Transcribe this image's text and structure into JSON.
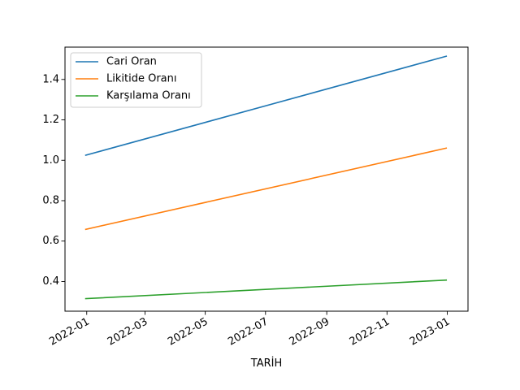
{
  "chart_data": {
    "type": "line",
    "title": "",
    "xlabel": "TARİH",
    "ylabel": "",
    "x_type": "date",
    "x_ticks": [
      "2022-01",
      "2022-03",
      "2022-05",
      "2022-07",
      "2022-09",
      "2022-11",
      "2023-01"
    ],
    "y_ticks": [
      "0.4",
      "0.6",
      "0.8",
      "1.0",
      "1.2",
      "1.4"
    ],
    "xlim": [
      "2021-12-10",
      "2023-01-22"
    ],
    "ylim": [
      0.253,
      1.56
    ],
    "grid": false,
    "legend_position": "upper-left",
    "series": [
      {
        "name": "Cari Oran",
        "color": "#1f77b4",
        "x": [
          "2021-12-31",
          "2022-12-31"
        ],
        "y": [
          1.025,
          1.515
        ]
      },
      {
        "name": "Likitide Oranı",
        "color": "#ff7f0e",
        "x": [
          "2021-12-31",
          "2022-12-31"
        ],
        "y": [
          0.658,
          1.06
        ]
      },
      {
        "name": "Karşılama Oranı",
        "color": "#2ca02c",
        "x": [
          "2021-12-31",
          "2022-12-31"
        ],
        "y": [
          0.315,
          0.407
        ]
      }
    ]
  }
}
